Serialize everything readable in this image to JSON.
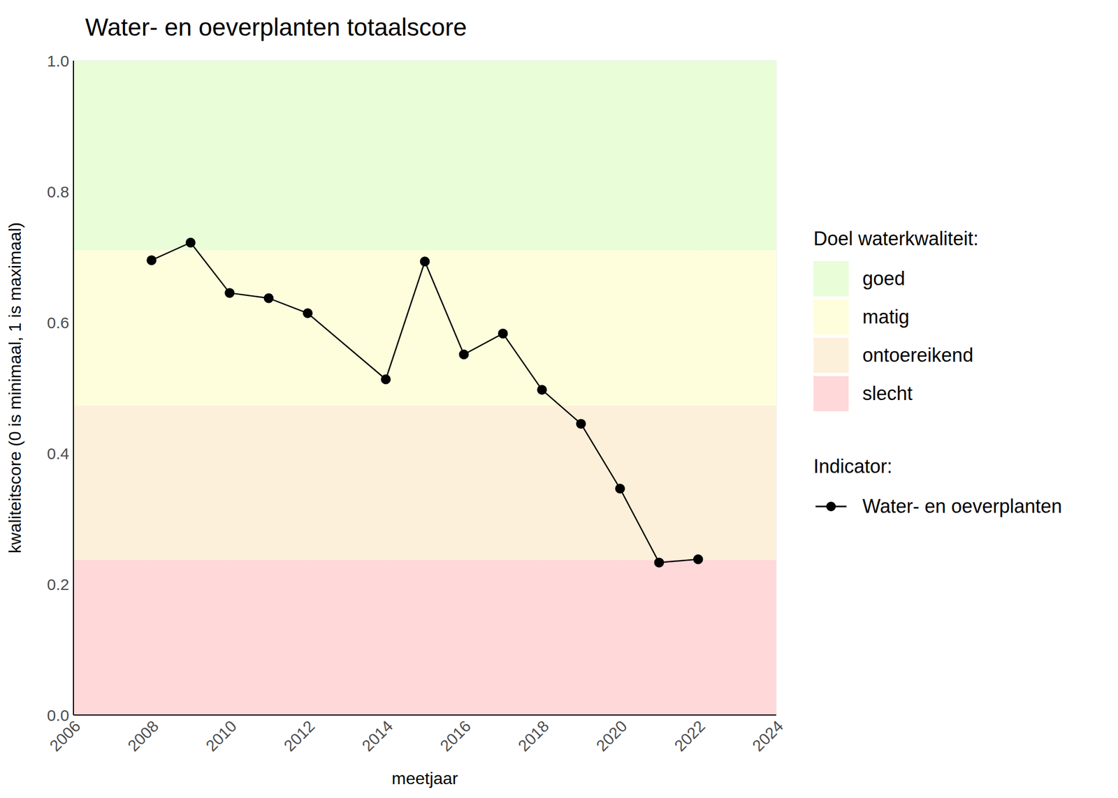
{
  "chart_data": {
    "type": "line",
    "title": "Water- en oeverplanten totaalscore",
    "x_label": "meetjaar",
    "y_label": "kwaliteitscore (0 is minimaal, 1 is maximaal)",
    "x": [
      2008,
      2009,
      2010,
      2011,
      2012,
      2014,
      2015,
      2016,
      2017,
      2018,
      2019,
      2020,
      2021,
      2022
    ],
    "series": [
      {
        "name": "Water- en oeverplanten",
        "color": "#000000",
        "marker": "circle",
        "values": [
          0.695,
          0.722,
          0.645,
          0.637,
          0.614,
          0.513,
          0.693,
          0.551,
          0.583,
          0.497,
          0.445,
          0.346,
          0.233,
          0.238
        ]
      }
    ],
    "xlim": [
      2006,
      2024
    ],
    "xticks": [
      2006,
      2008,
      2010,
      2012,
      2014,
      2016,
      2018,
      2020,
      2022,
      2024
    ],
    "ylim": [
      0,
      1
    ],
    "yticks": [
      {
        "value": 0,
        "label": "0.0"
      },
      0.2,
      0.4,
      0.6,
      0.8,
      {
        "value": 1,
        "label": "1.0"
      }
    ],
    "grid": true,
    "legend": "right",
    "band_legend_title": "Doel waterkwaliteit:",
    "series_legend_title": "Indicator:",
    "bands": [
      {
        "name": "goed",
        "color": "#e8fdd8",
        "from": 0.71,
        "to": 1.0
      },
      {
        "name": "matig",
        "color": "#fefedd",
        "from": 0.473,
        "to": 0.71
      },
      {
        "name": "ontoereikend",
        "color": "#fdf0da",
        "from": 0.237,
        "to": 0.473
      },
      {
        "name": "slecht",
        "color": "#ffd8da",
        "from": 0,
        "to": 0.237
      }
    ]
  }
}
